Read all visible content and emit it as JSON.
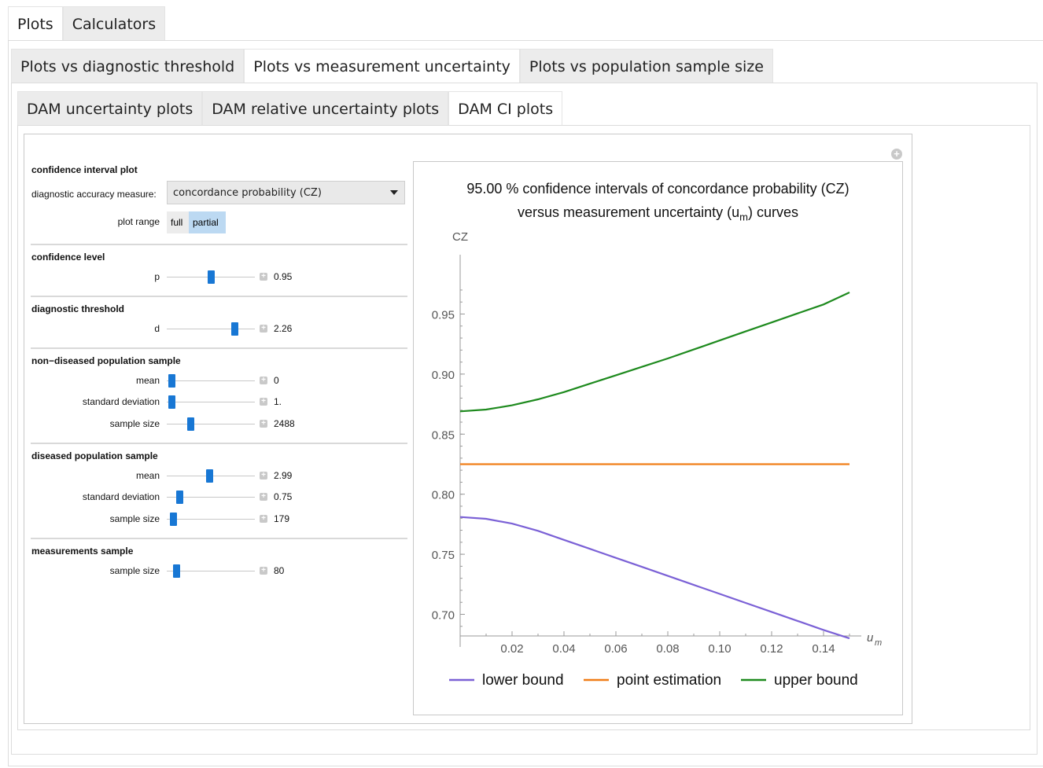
{
  "top_tabs": [
    "Plots",
    "Calculators"
  ],
  "sub_tabs": [
    "Plots vs diagnostic threshold",
    "Plots vs measurement uncertainty",
    "Plots vs population sample size"
  ],
  "inner_tabs": [
    "DAM uncertainty plots",
    "DAM relative uncertainty plots",
    "DAM CI plots"
  ],
  "controls": {
    "ci_section": "confidence interval plot",
    "dam_label": "diagnostic accuracy measure:",
    "dam_value": "concordance probability (CZ)",
    "plot_range_label": "plot range",
    "plot_range_options": [
      "full",
      "partial"
    ],
    "plot_range_selected": "partial",
    "confidence": {
      "title": "confidence level",
      "p_label": "p",
      "p_value": "0.95",
      "p_fraction": 0.5
    },
    "threshold": {
      "title": "diagnostic threshold",
      "d_label": "d",
      "d_value": "2.26",
      "d_fraction": 0.8
    },
    "nondiseased": {
      "title": "non−diseased population sample",
      "mean_label": "mean",
      "mean_value": "0",
      "mean_fraction": 0.02,
      "sd_label": "standard deviation",
      "sd_value": "1.",
      "sd_fraction": 0.02,
      "n_label": "sample size",
      "n_value": "2488",
      "n_fraction": 0.25
    },
    "diseased": {
      "title": "diseased population sample",
      "mean_label": "mean",
      "mean_value": "2.99",
      "mean_fraction": 0.49,
      "sd_label": "standard deviation",
      "sd_value": "0.75",
      "sd_fraction": 0.12,
      "n_label": "sample size",
      "n_value": "179",
      "n_fraction": 0.04
    },
    "measurements": {
      "title": "measurements sample",
      "n_label": "sample size",
      "n_value": "80",
      "n_fraction": 0.08
    }
  },
  "chart_data": {
    "type": "line",
    "title_line1": "95.00 % confidence intervals of concordance probability (CZ)",
    "title_line2_pre": "versus measurement uncertainty (u",
    "title_line2_sub": "m",
    "title_line2_post": ") curves",
    "ylabel": "CZ",
    "xlabel_main": "u",
    "xlabel_sub": "m",
    "xlim": [
      0,
      0.15
    ],
    "ylim": [
      0.682,
      0.985
    ],
    "xticks": [
      0.02,
      0.04,
      0.06,
      0.08,
      0.1,
      0.12,
      0.14
    ],
    "xtick_labels": [
      "0.02",
      "0.04",
      "0.06",
      "0.08",
      "0.10",
      "0.12",
      "0.14"
    ],
    "yticks": [
      0.7,
      0.75,
      0.8,
      0.85,
      0.9,
      0.95
    ],
    "ytick_labels": [
      "0.70",
      "0.75",
      "0.80",
      "0.85",
      "0.90",
      "0.95"
    ],
    "x": [
      0,
      0.01,
      0.02,
      0.03,
      0.04,
      0.05,
      0.06,
      0.07,
      0.08,
      0.09,
      0.1,
      0.11,
      0.12,
      0.13,
      0.14,
      0.15
    ],
    "series": [
      {
        "name": "lower bound",
        "color": "#7b61d6",
        "values": [
          0.781,
          0.7795,
          0.7755,
          0.7695,
          0.762,
          0.7545,
          0.747,
          0.7395,
          0.732,
          0.7245,
          0.717,
          0.7095,
          0.702,
          0.6945,
          0.687,
          0.68
        ]
      },
      {
        "name": "point estimation",
        "color": "#f07d17",
        "values": [
          0.825,
          0.825,
          0.825,
          0.825,
          0.825,
          0.825,
          0.825,
          0.825,
          0.825,
          0.825,
          0.825,
          0.825,
          0.825,
          0.825,
          0.825,
          0.825
        ]
      },
      {
        "name": "upper bound",
        "color": "#1e8a1e",
        "values": [
          0.869,
          0.8705,
          0.874,
          0.879,
          0.885,
          0.892,
          0.899,
          0.906,
          0.913,
          0.9205,
          0.928,
          0.9355,
          0.943,
          0.9505,
          0.958,
          0.968
        ]
      }
    ],
    "legend_position": "bottom"
  }
}
